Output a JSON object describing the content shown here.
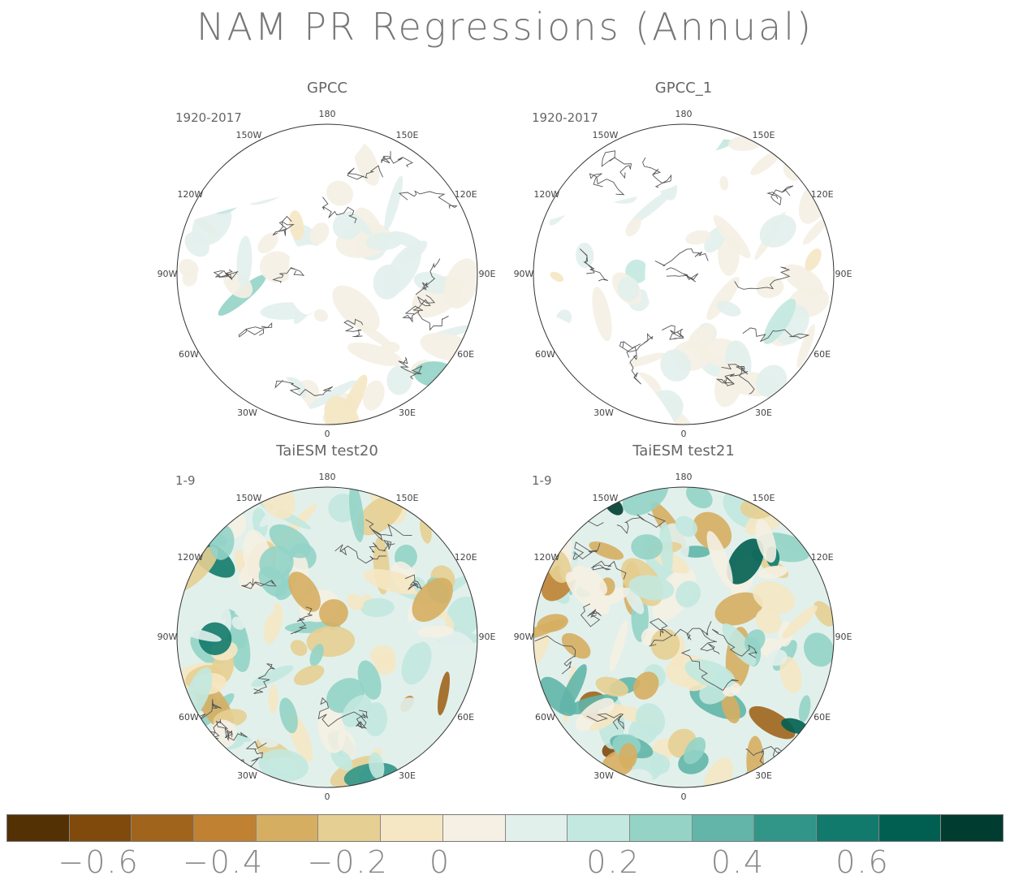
{
  "title": "NAM PR Regressions (Annual)",
  "panels": [
    {
      "title": "GPCC",
      "period": "1920-2017"
    },
    {
      "title": "GPCC_1",
      "period": "1920-2017"
    },
    {
      "title": "TaiESM test20",
      "period": "1-9"
    },
    {
      "title": "TaiESM test21",
      "period": "1-9"
    }
  ],
  "longitude_labels": [
    "180",
    "150E",
    "120E",
    "90E",
    "60E",
    "30E",
    "0",
    "30W",
    "60W",
    "90W",
    "120W",
    "150W"
  ],
  "colorbar": {
    "colors": [
      "#543005",
      "#7f4a0c",
      "#a0641c",
      "#c08232",
      "#d6ae62",
      "#e6cf92",
      "#f5e7c3",
      "#f5f0e3",
      "#e2f0ec",
      "#c2e8df",
      "#94d3c6",
      "#62b5a8",
      "#319588",
      "#127a6c",
      "#015f51",
      "#003c30"
    ],
    "tick_labels": [
      "-0.6",
      "-0.4",
      "-0.2",
      "0",
      "0.2",
      "0.4",
      "0.6"
    ]
  },
  "chart_data": {
    "type": "heatmap",
    "projection": "north polar stereographic",
    "value_range": [
      -0.8,
      0.8
    ],
    "panels": [
      {
        "title": "GPCC",
        "period": "1920-2017",
        "coverage": "land only",
        "typical_magnitude": 0.1
      },
      {
        "title": "GPCC_1",
        "period": "1920-2017",
        "coverage": "land only",
        "typical_magnitude": 0.1
      },
      {
        "title": "TaiESM test20",
        "period": "1-9",
        "coverage": "global",
        "typical_magnitude": 0.3
      },
      {
        "title": "TaiESM test21",
        "period": "1-9",
        "coverage": "global",
        "typical_magnitude": 0.35
      }
    ]
  }
}
